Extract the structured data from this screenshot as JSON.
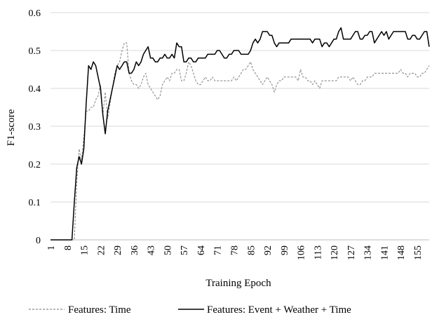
{
  "chart_data": {
    "type": "line",
    "title": "",
    "xlabel": "Training Epoch",
    "ylabel": "F1-score",
    "ylim": [
      0,
      0.6
    ],
    "yticks": [
      0,
      0.1,
      0.2,
      0.3,
      0.4,
      0.5,
      0.6
    ],
    "ytick_labels": [
      "0",
      "0.1",
      "0.2",
      "0.3",
      "0.4",
      "0.5",
      "0.6"
    ],
    "xlim": [
      1,
      160
    ],
    "xticks": [
      1,
      8,
      15,
      22,
      29,
      36,
      43,
      50,
      57,
      64,
      71,
      78,
      85,
      92,
      99,
      106,
      113,
      120,
      127,
      134,
      141,
      148,
      155
    ],
    "grid": "horizontal",
    "legend_position": "bottom",
    "series": [
      {
        "name": "Features: Time",
        "color": "#8c8c8c",
        "style": "dashed",
        "x": [
          1,
          2,
          3,
          4,
          5,
          6,
          7,
          8,
          9,
          10,
          11,
          12,
          13,
          14,
          15,
          16,
          17,
          18,
          19,
          20,
          21,
          22,
          23,
          24,
          25,
          26,
          27,
          28,
          29,
          30,
          31,
          32,
          33,
          34,
          35,
          36,
          37,
          38,
          39,
          40,
          41,
          42,
          43,
          44,
          45,
          46,
          47,
          48,
          49,
          50,
          51,
          52,
          53,
          54,
          55,
          56,
          57,
          58,
          59,
          60,
          61,
          62,
          63,
          64,
          65,
          66,
          67,
          68,
          69,
          70,
          71,
          72,
          73,
          74,
          75,
          76,
          77,
          78,
          79,
          80,
          81,
          82,
          83,
          84,
          85,
          86,
          87,
          88,
          89,
          90,
          91,
          92,
          93,
          94,
          95,
          96,
          97,
          98,
          99,
          100,
          101,
          102,
          103,
          104,
          105,
          106,
          107,
          108,
          109,
          110,
          111,
          112,
          113,
          114,
          115,
          116,
          117,
          118,
          119,
          120,
          121,
          122,
          123,
          124,
          125,
          126,
          127,
          128,
          129,
          130,
          131,
          132,
          133,
          134,
          135,
          136,
          137,
          138,
          139,
          140,
          141,
          142,
          143,
          144,
          145,
          146,
          147,
          148,
          149,
          150,
          151,
          152,
          153,
          154,
          155,
          156,
          157,
          158,
          159,
          160
        ],
        "values": [
          0,
          0,
          0,
          0,
          0,
          0,
          0,
          0,
          0,
          0,
          0,
          0.15,
          0.24,
          0.21,
          0.27,
          0.34,
          0.34,
          0.35,
          0.35,
          0.37,
          0.38,
          0.41,
          0.33,
          0.39,
          0.32,
          0.36,
          0.4,
          0.44,
          0.46,
          0.47,
          0.5,
          0.52,
          0.52,
          0.44,
          0.42,
          0.41,
          0.41,
          0.4,
          0.41,
          0.43,
          0.44,
          0.41,
          0.4,
          0.39,
          0.38,
          0.37,
          0.38,
          0.41,
          0.42,
          0.43,
          0.42,
          0.44,
          0.44,
          0.45,
          0.45,
          0.42,
          0.42,
          0.44,
          0.47,
          0.46,
          0.44,
          0.42,
          0.41,
          0.41,
          0.42,
          0.43,
          0.42,
          0.42,
          0.43,
          0.42,
          0.42,
          0.42,
          0.42,
          0.42,
          0.42,
          0.42,
          0.42,
          0.43,
          0.42,
          0.43,
          0.44,
          0.45,
          0.45,
          0.46,
          0.47,
          0.45,
          0.44,
          0.43,
          0.42,
          0.41,
          0.42,
          0.43,
          0.42,
          0.41,
          0.39,
          0.41,
          0.42,
          0.42,
          0.43,
          0.43,
          0.43,
          0.43,
          0.43,
          0.43,
          0.42,
          0.45,
          0.43,
          0.43,
          0.42,
          0.42,
          0.41,
          0.42,
          0.41,
          0.4,
          0.42,
          0.42,
          0.42,
          0.42,
          0.42,
          0.42,
          0.42,
          0.43,
          0.43,
          0.43,
          0.43,
          0.43,
          0.42,
          0.43,
          0.42,
          0.41,
          0.41,
          0.42,
          0.42,
          0.43,
          0.43,
          0.43,
          0.44,
          0.44,
          0.44,
          0.44,
          0.44,
          0.44,
          0.44,
          0.44,
          0.44,
          0.44,
          0.44,
          0.45,
          0.44,
          0.44,
          0.43,
          0.44,
          0.44,
          0.44,
          0.43,
          0.43,
          0.44,
          0.44,
          0.45,
          0.46
        ]
      },
      {
        "name": "Features: Event + Weather + Time",
        "color": "#000000",
        "style": "solid",
        "x": [
          1,
          2,
          3,
          4,
          5,
          6,
          7,
          8,
          9,
          10,
          11,
          12,
          13,
          14,
          15,
          16,
          17,
          18,
          19,
          20,
          21,
          22,
          23,
          24,
          25,
          26,
          27,
          28,
          29,
          30,
          31,
          32,
          33,
          34,
          35,
          36,
          37,
          38,
          39,
          40,
          41,
          42,
          43,
          44,
          45,
          46,
          47,
          48,
          49,
          50,
          51,
          52,
          53,
          54,
          55,
          56,
          57,
          58,
          59,
          60,
          61,
          62,
          63,
          64,
          65,
          66,
          67,
          68,
          69,
          70,
          71,
          72,
          73,
          74,
          75,
          76,
          77,
          78,
          79,
          80,
          81,
          82,
          83,
          84,
          85,
          86,
          87,
          88,
          89,
          90,
          91,
          92,
          93,
          94,
          95,
          96,
          97,
          98,
          99,
          100,
          101,
          102,
          103,
          104,
          105,
          106,
          107,
          108,
          109,
          110,
          111,
          112,
          113,
          114,
          115,
          116,
          117,
          118,
          119,
          120,
          121,
          122,
          123,
          124,
          125,
          126,
          127,
          128,
          129,
          130,
          131,
          132,
          133,
          134,
          135,
          136,
          137,
          138,
          139,
          140,
          141,
          142,
          143,
          144,
          145,
          146,
          147,
          148,
          149,
          150,
          151,
          152,
          153,
          154,
          155,
          156,
          157,
          158,
          159,
          160
        ],
        "values": [
          0,
          0,
          0,
          0,
          0,
          0,
          0,
          0,
          0,
          0,
          0.1,
          0.19,
          0.22,
          0.2,
          0.24,
          0.36,
          0.46,
          0.45,
          0.47,
          0.46,
          0.43,
          0.4,
          0.33,
          0.28,
          0.34,
          0.37,
          0.4,
          0.43,
          0.46,
          0.45,
          0.46,
          0.47,
          0.47,
          0.44,
          0.44,
          0.45,
          0.47,
          0.46,
          0.47,
          0.49,
          0.5,
          0.51,
          0.48,
          0.48,
          0.47,
          0.47,
          0.48,
          0.48,
          0.49,
          0.48,
          0.48,
          0.49,
          0.48,
          0.52,
          0.51,
          0.51,
          0.47,
          0.47,
          0.48,
          0.48,
          0.47,
          0.47,
          0.48,
          0.48,
          0.48,
          0.48,
          0.49,
          0.49,
          0.49,
          0.49,
          0.5,
          0.5,
          0.49,
          0.48,
          0.48,
          0.49,
          0.49,
          0.5,
          0.5,
          0.5,
          0.49,
          0.49,
          0.49,
          0.49,
          0.5,
          0.52,
          0.53,
          0.52,
          0.53,
          0.55,
          0.55,
          0.55,
          0.54,
          0.54,
          0.52,
          0.51,
          0.52,
          0.52,
          0.52,
          0.52,
          0.52,
          0.53,
          0.53,
          0.53,
          0.53,
          0.53,
          0.53,
          0.53,
          0.53,
          0.53,
          0.52,
          0.53,
          0.53,
          0.53,
          0.51,
          0.52,
          0.52,
          0.51,
          0.52,
          0.53,
          0.53,
          0.55,
          0.56,
          0.53,
          0.53,
          0.53,
          0.53,
          0.54,
          0.55,
          0.55,
          0.53,
          0.53,
          0.54,
          0.54,
          0.55,
          0.55,
          0.52,
          0.53,
          0.54,
          0.55,
          0.54,
          0.55,
          0.53,
          0.54,
          0.55,
          0.55,
          0.55,
          0.55,
          0.55,
          0.55,
          0.53,
          0.53,
          0.54,
          0.54,
          0.53,
          0.53,
          0.54,
          0.55,
          0.55,
          0.51
        ]
      }
    ]
  }
}
